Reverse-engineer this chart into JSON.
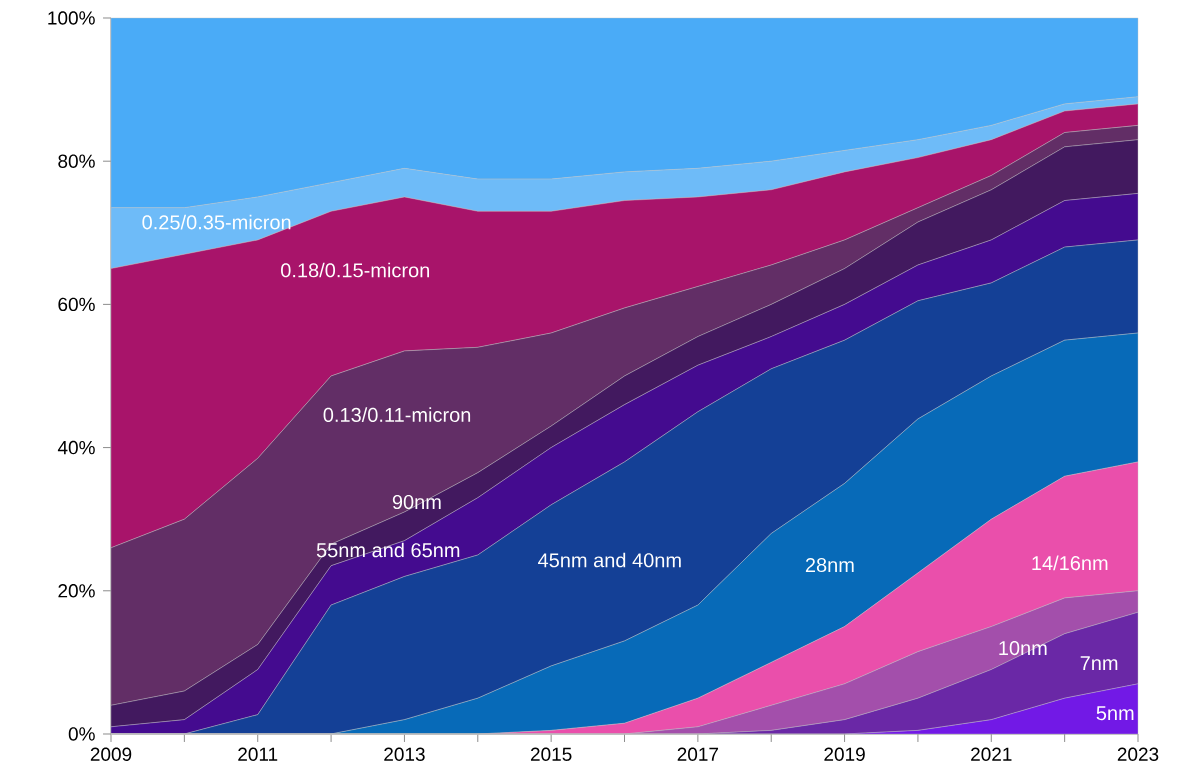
{
  "chart_data": {
    "type": "area",
    "stacked": true,
    "x": [
      2009,
      2010,
      2011,
      2012,
      2013,
      2014,
      2015,
      2016,
      2017,
      2018,
      2019,
      2020,
      2021,
      2022,
      2023
    ],
    "xlim": [
      2009,
      2023
    ],
    "xticks": [
      2009,
      {
        "value": 2010,
        "label": null
      },
      2011,
      {
        "value": 2012,
        "label": null
      },
      2013,
      {
        "value": 2014,
        "label": null
      },
      2015,
      {
        "value": 2016,
        "label": null
      },
      2017,
      {
        "value": 2018,
        "label": null
      },
      2019,
      {
        "value": 2020,
        "label": null
      },
      2021,
      {
        "value": 2022,
        "label": null
      },
      2023
    ],
    "ylim": [
      0,
      100
    ],
    "yticks": [
      {
        "value": 0,
        "label": "0%"
      },
      {
        "value": 20,
        "label": "20%"
      },
      {
        "value": 40,
        "label": "40%"
      },
      {
        "value": 60,
        "label": "60%"
      },
      {
        "value": 80,
        "label": "80%"
      },
      {
        "value": 100,
        "label": "100%"
      }
    ],
    "series": [
      {
        "name": "5nm",
        "color": "#7219e6",
        "values": [
          0,
          0,
          0,
          0,
          0,
          0,
          0,
          0,
          0,
          0,
          0,
          0.5,
          2,
          5,
          7
        ]
      },
      {
        "name": "7nm",
        "color": "#6a28a6",
        "values": [
          0,
          0,
          0,
          0,
          0,
          0,
          0,
          0,
          0,
          0.5,
          2,
          4.5,
          7,
          9,
          10
        ]
      },
      {
        "name": "10nm",
        "color": "#a34fab",
        "values": [
          0,
          0,
          0,
          0,
          0,
          0,
          0,
          0,
          1,
          3.5,
          5,
          6.5,
          6,
          5,
          3
        ]
      },
      {
        "name": "14/16nm",
        "color": "#ea4fab",
        "values": [
          0,
          0,
          0,
          0,
          0,
          0,
          0.5,
          1.5,
          4,
          6,
          8,
          11,
          15,
          17,
          18
        ]
      },
      {
        "name": "28nm",
        "color": "#076ab8",
        "values": [
          0,
          0,
          0,
          0,
          2,
          5,
          9,
          11.5,
          13,
          18,
          20,
          21.5,
          20,
          19,
          18
        ]
      },
      {
        "name": "45nm and 40nm",
        "color": "#144096",
        "values": [
          0,
          0,
          2.7,
          18,
          20,
          20,
          22.5,
          25,
          27,
          23,
          20,
          16.5,
          13,
          13,
          13
        ]
      },
      {
        "name": "55nm and 65nm",
        "color": "#440b8f",
        "values": [
          1,
          2,
          6.3,
          5.5,
          5,
          8,
          8,
          8,
          6.5,
          4.5,
          5,
          5,
          6,
          6.5,
          6.5
        ]
      },
      {
        "name": "90nm",
        "color": "#42195f",
        "values": [
          3,
          4,
          3.5,
          3,
          4,
          3.5,
          3,
          4,
          4,
          4.5,
          5,
          6,
          7,
          7.5,
          7.5
        ]
      },
      {
        "name": "0.13/0.11-micron",
        "color": "#622e66",
        "values": [
          22,
          24,
          26,
          23.5,
          22.5,
          17.5,
          13,
          9.5,
          7,
          5.5,
          4,
          2,
          2,
          2,
          2
        ]
      },
      {
        "name": "0.18/0.15-micron",
        "color": "#a8146a",
        "values": [
          39,
          37,
          30.5,
          23,
          21.5,
          19,
          17,
          15,
          12.5,
          10.5,
          9.5,
          7,
          5,
          3,
          3
        ]
      },
      {
        "name": "0.25/0.35-micron",
        "color": "#6ebbf8",
        "values": [
          8.5,
          6.5,
          6,
          4,
          4,
          4.5,
          4.5,
          4,
          4,
          4,
          3,
          2.5,
          2,
          1,
          1
        ]
      },
      {
        "color": "#4aabf7",
        "values": [
          26.5,
          26.5,
          25,
          23,
          21,
          22.5,
          22.5,
          21.5,
          21,
          20,
          18.5,
          17,
          15,
          12,
          11
        ]
      }
    ]
  }
}
